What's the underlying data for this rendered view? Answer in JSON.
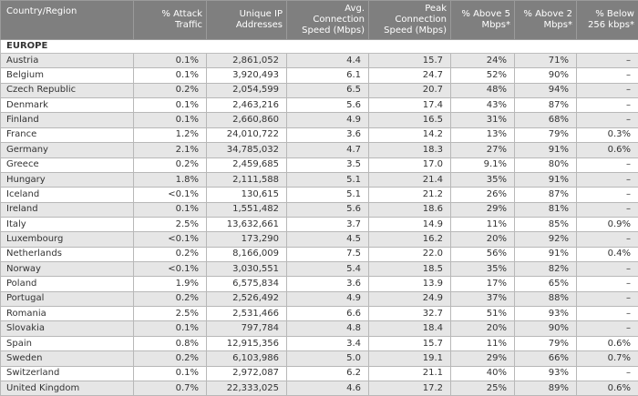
{
  "headers": [
    "Country/Region",
    "% Attack Traffic",
    "Unique IP Addresses",
    "Avg. Connection Speed (Mbps)",
    "Peak Connection Speed (Mbps)",
    "% Above 5 Mbps*",
    "% Above 2 Mbps*",
    "% Below 256 kbps*"
  ],
  "section_label": "EUROPE",
  "rows": [
    [
      "Austria",
      "0.1%",
      "2,861,052",
      "4.4",
      "15.7",
      "24%",
      "71%",
      "–"
    ],
    [
      "Belgium",
      "0.1%",
      "3,920,493",
      "6.1",
      "24.7",
      "52%",
      "90%",
      "–"
    ],
    [
      "Czech Republic",
      "0.2%",
      "2,054,599",
      "6.5",
      "20.7",
      "48%",
      "94%",
      "–"
    ],
    [
      "Denmark",
      "0.1%",
      "2,463,216",
      "5.6",
      "17.4",
      "43%",
      "87%",
      "–"
    ],
    [
      "Finland",
      "0.1%",
      "2,660,860",
      "4.9",
      "16.5",
      "31%",
      "68%",
      "–"
    ],
    [
      "France",
      "1.2%",
      "24,010,722",
      "3.6",
      "14.2",
      "13%",
      "79%",
      "0.3%"
    ],
    [
      "Germany",
      "2.1%",
      "34,785,032",
      "4.7",
      "18.3",
      "27%",
      "91%",
      "0.6%"
    ],
    [
      "Greece",
      "0.2%",
      "2,459,685",
      "3.5",
      "17.0",
      "9.1%",
      "80%",
      "–"
    ],
    [
      "Hungary",
      "1.8%",
      "2,111,588",
      "5.1",
      "21.4",
      "35%",
      "91%",
      "–"
    ],
    [
      "Iceland",
      "<0.1%",
      "130,615",
      "5.1",
      "21.2",
      "26%",
      "87%",
      "–"
    ],
    [
      "Ireland",
      "0.1%",
      "1,551,482",
      "5.6",
      "18.6",
      "29%",
      "81%",
      "–"
    ],
    [
      "Italy",
      "2.5%",
      "13,632,661",
      "3.7",
      "14.9",
      "11%",
      "85%",
      "0.9%"
    ],
    [
      "Luxembourg",
      "<0.1%",
      "173,290",
      "4.5",
      "16.2",
      "20%",
      "92%",
      "–"
    ],
    [
      "Netherlands",
      "0.2%",
      "8,166,009",
      "7.5",
      "22.0",
      "56%",
      "91%",
      "0.4%"
    ],
    [
      "Norway",
      "<0.1%",
      "3,030,551",
      "5.4",
      "18.5",
      "35%",
      "82%",
      "–"
    ],
    [
      "Poland",
      "1.9%",
      "6,575,834",
      "3.6",
      "13.9",
      "17%",
      "65%",
      "–"
    ],
    [
      "Portugal",
      "0.2%",
      "2,526,492",
      "4.9",
      "24.9",
      "37%",
      "88%",
      "–"
    ],
    [
      "Romania",
      "2.5%",
      "2,531,466",
      "6.6",
      "32.7",
      "51%",
      "93%",
      "–"
    ],
    [
      "Slovakia",
      "0.1%",
      "797,784",
      "4.8",
      "18.4",
      "20%",
      "90%",
      "–"
    ],
    [
      "Spain",
      "0.8%",
      "12,915,356",
      "3.4",
      "15.7",
      "11%",
      "79%",
      "0.6%"
    ],
    [
      "Sweden",
      "0.2%",
      "6,103,986",
      "5.0",
      "19.1",
      "29%",
      "66%",
      "0.7%"
    ],
    [
      "Switzerland",
      "0.1%",
      "2,972,087",
      "6.2",
      "21.1",
      "40%",
      "93%",
      "–"
    ],
    [
      "United Kingdom",
      "0.7%",
      "22,333,025",
      "4.6",
      "17.2",
      "25%",
      "89%",
      "0.6%"
    ]
  ]
}
